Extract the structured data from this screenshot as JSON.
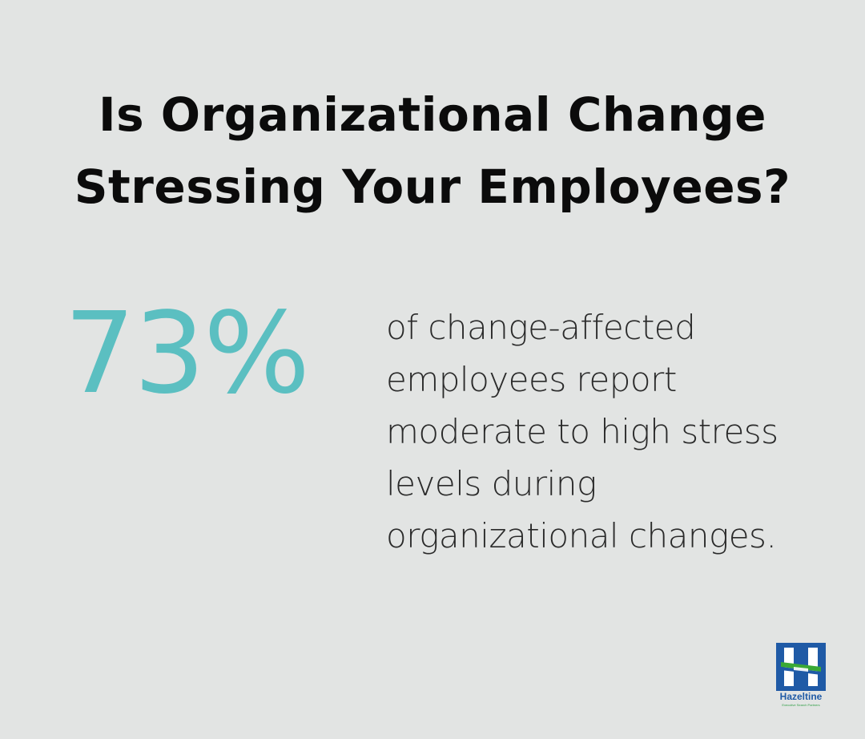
{
  "title": {
    "line1": "Is Organizational Change",
    "line2": "Stressing Your Employees?"
  },
  "stat": {
    "value": "73%",
    "description_lines": [
      "of change-affected",
      "employees report",
      "moderate to high stress",
      "levels during",
      "organizational changes."
    ]
  },
  "logo": {
    "icon": "hazeltine-h-logo-icon",
    "name": "Hazeltine",
    "tagline": "Executive Search Partners"
  },
  "colors": {
    "background": "#e2e4e3",
    "title": "#0b0b0b",
    "stat_value": "#5bbfc1",
    "body_text": "#2a2a2a",
    "logo_blue": "#1f5aa6",
    "logo_green": "#3aa935"
  }
}
